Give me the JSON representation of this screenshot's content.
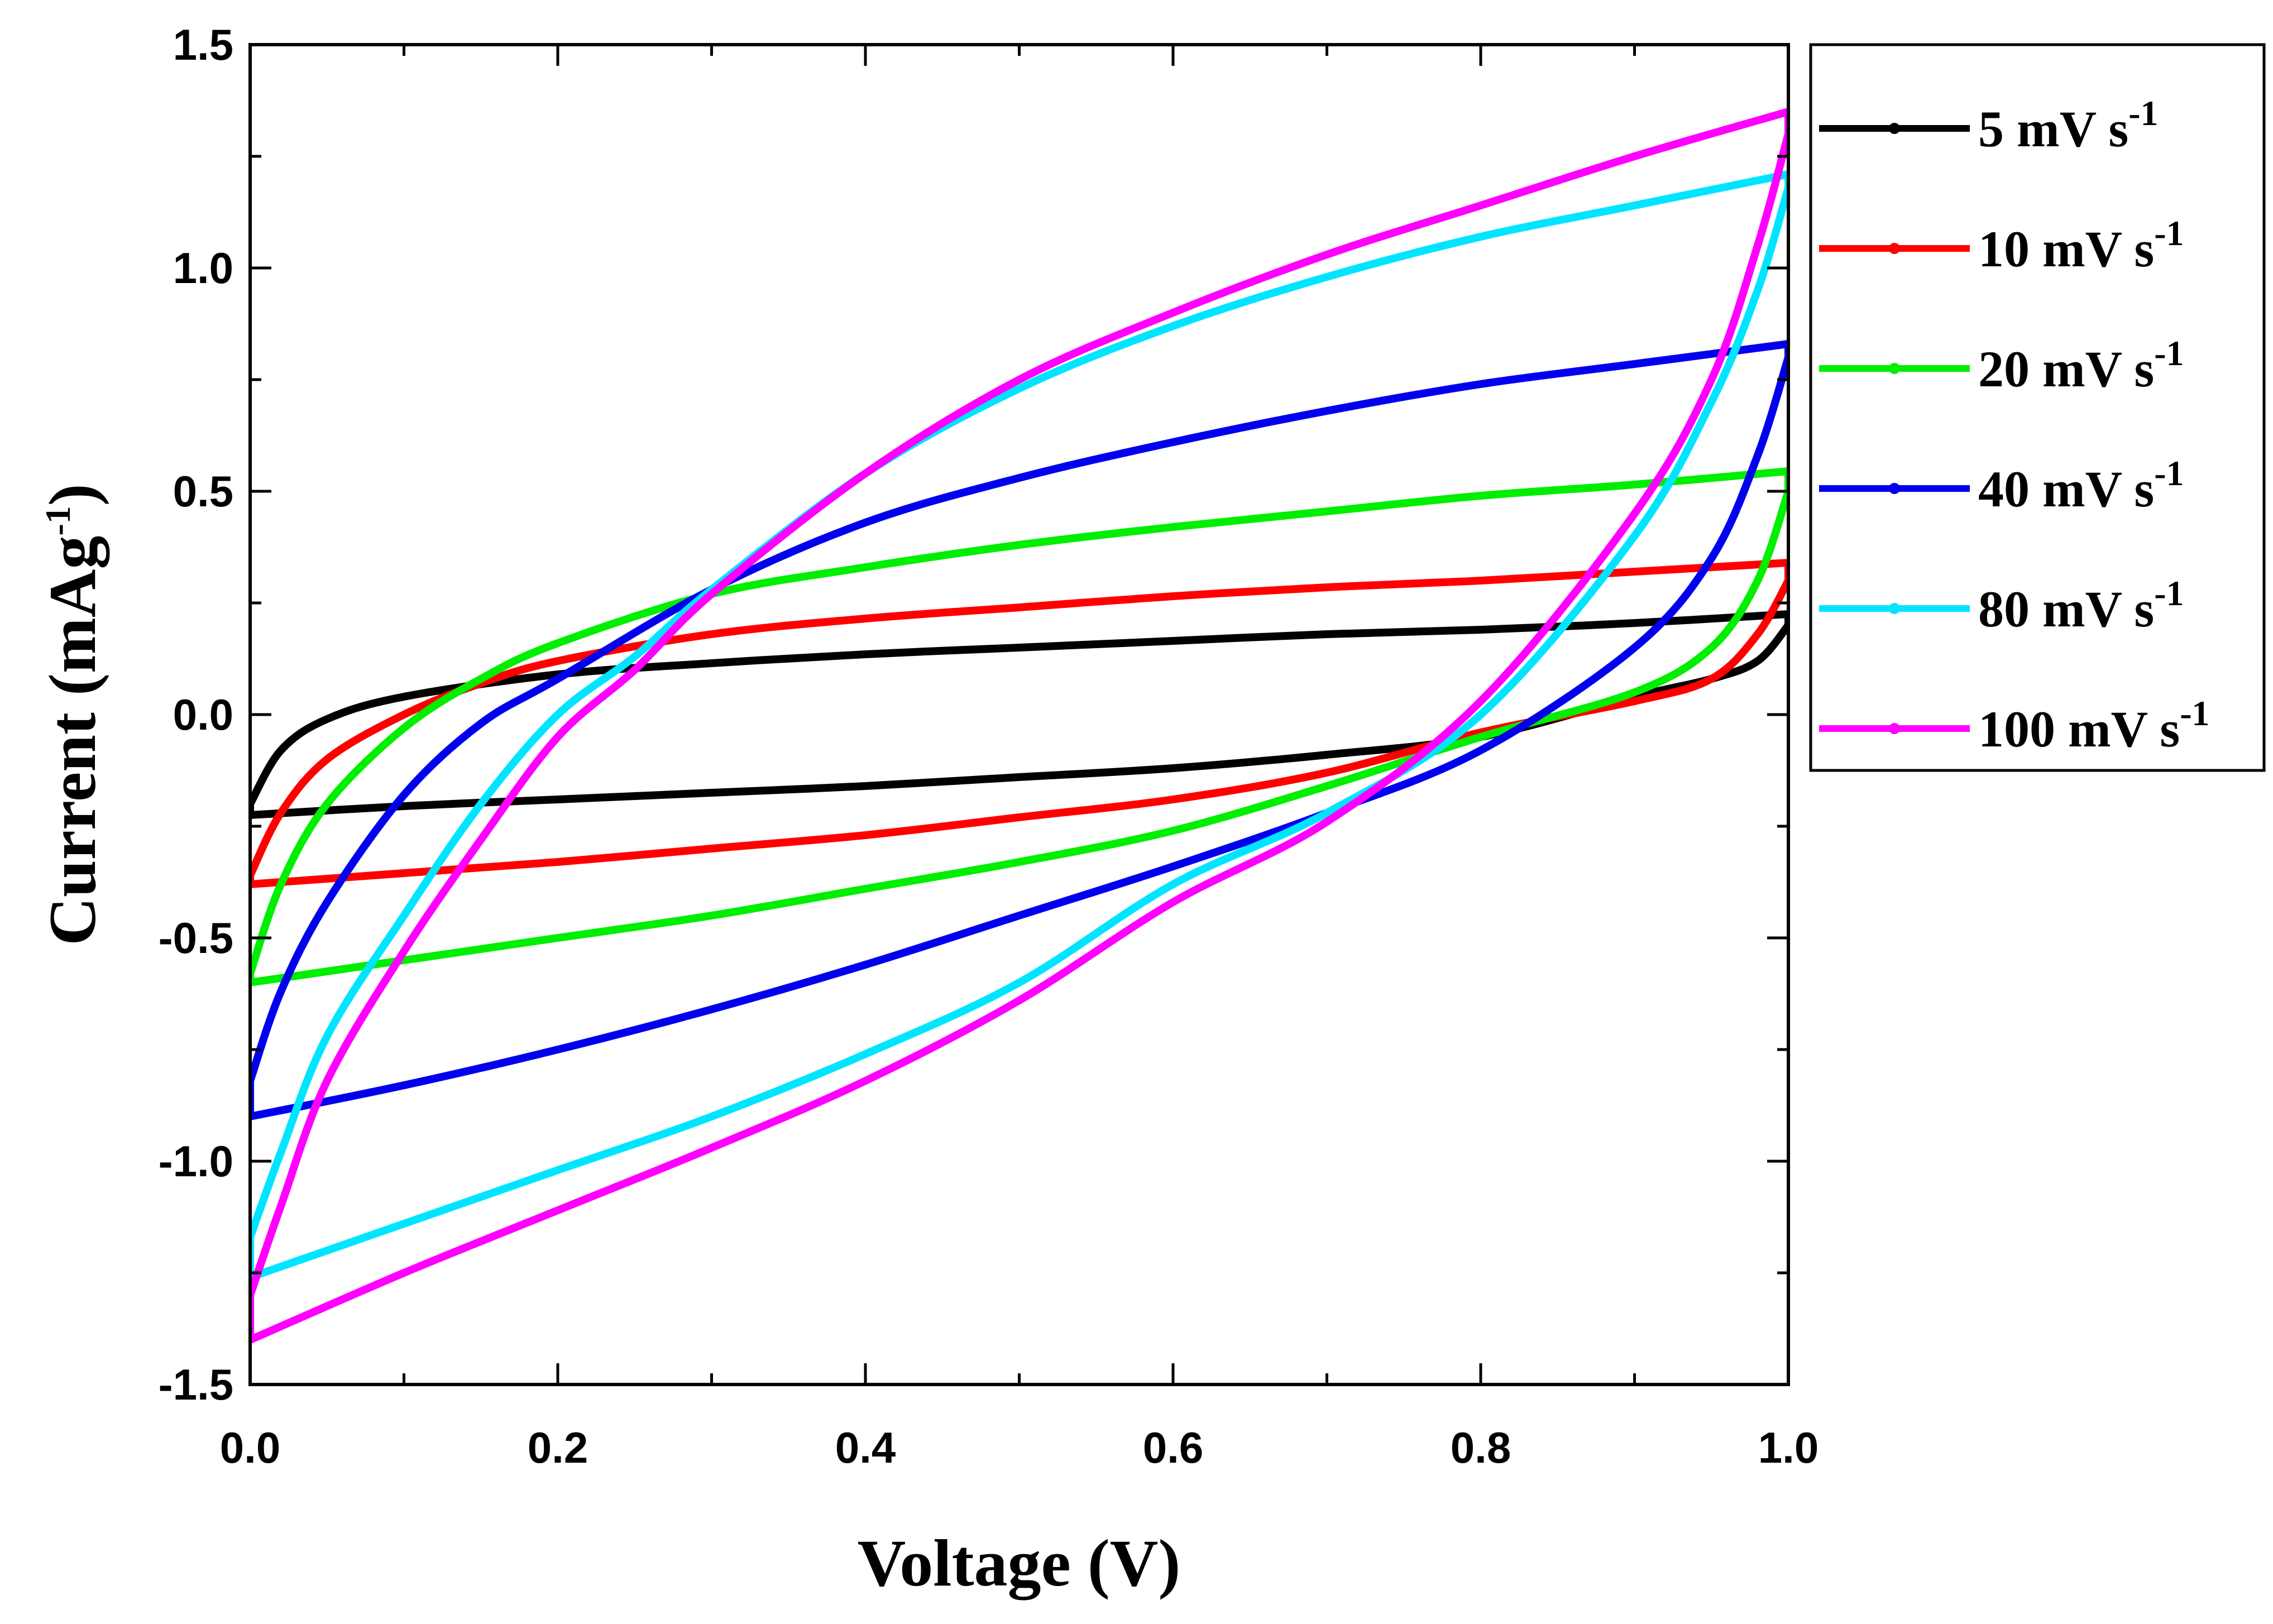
{
  "chart_data": {
    "type": "line",
    "title": "",
    "xlabel": "Voltage (V)",
    "ylabel": {
      "main": "Current (mAg",
      "sup": "-1",
      "close": ")"
    },
    "xlim": [
      0.0,
      1.0
    ],
    "ylim": [
      -1.5,
      1.5
    ],
    "x_ticks": [
      "0.0",
      "0.2",
      "0.4",
      "0.6",
      "0.8",
      "1.0"
    ],
    "y_ticks": [
      "-1.5",
      "-1.0",
      "-0.5",
      "0.0",
      "0.5",
      "1.0",
      "1.5"
    ],
    "grid": false,
    "legend_position": "right",
    "series": [
      {
        "name": "5 mV s-1",
        "label": "5 mV s",
        "sup": "-1",
        "color": "#000000",
        "upper": [
          [
            0.0,
            -0.2
          ],
          [
            0.02,
            -0.08
          ],
          [
            0.05,
            -0.01
          ],
          [
            0.1,
            0.04
          ],
          [
            0.2,
            0.09
          ],
          [
            0.3,
            0.115
          ],
          [
            0.4,
            0.135
          ],
          [
            0.5,
            0.15
          ],
          [
            0.6,
            0.165
          ],
          [
            0.7,
            0.18
          ],
          [
            0.8,
            0.19
          ],
          [
            0.9,
            0.205
          ],
          [
            1.0,
            0.225
          ]
        ],
        "lower": [
          [
            1.0,
            0.2
          ],
          [
            0.98,
            0.12
          ],
          [
            0.95,
            0.08
          ],
          [
            0.9,
            0.04
          ],
          [
            0.8,
            -0.05
          ],
          [
            0.7,
            -0.09
          ],
          [
            0.6,
            -0.12
          ],
          [
            0.5,
            -0.14
          ],
          [
            0.4,
            -0.16
          ],
          [
            0.3,
            -0.175
          ],
          [
            0.2,
            -0.19
          ],
          [
            0.1,
            -0.205
          ],
          [
            0.0,
            -0.225
          ]
        ]
      },
      {
        "name": "10 mV s-1",
        "label": "10 mV s",
        "sup": "-1",
        "color": "#ff0000",
        "upper": [
          [
            0.0,
            -0.36
          ],
          [
            0.02,
            -0.22
          ],
          [
            0.05,
            -0.1
          ],
          [
            0.1,
            0.0
          ],
          [
            0.15,
            0.07
          ],
          [
            0.2,
            0.12
          ],
          [
            0.3,
            0.18
          ],
          [
            0.4,
            0.215
          ],
          [
            0.5,
            0.24
          ],
          [
            0.6,
            0.265
          ],
          [
            0.7,
            0.285
          ],
          [
            0.8,
            0.3
          ],
          [
            0.9,
            0.32
          ],
          [
            1.0,
            0.34
          ]
        ],
        "lower": [
          [
            1.0,
            0.3
          ],
          [
            0.98,
            0.18
          ],
          [
            0.95,
            0.08
          ],
          [
            0.9,
            0.03
          ],
          [
            0.8,
            -0.04
          ],
          [
            0.7,
            -0.13
          ],
          [
            0.6,
            -0.19
          ],
          [
            0.5,
            -0.23
          ],
          [
            0.4,
            -0.27
          ],
          [
            0.3,
            -0.3
          ],
          [
            0.2,
            -0.33
          ],
          [
            0.1,
            -0.355
          ],
          [
            0.0,
            -0.38
          ]
        ]
      },
      {
        "name": "20 mV s-1",
        "label": "20 mV s",
        "sup": "-1",
        "color": "#00ee00",
        "upper": [
          [
            0.0,
            -0.58
          ],
          [
            0.02,
            -0.38
          ],
          [
            0.05,
            -0.2
          ],
          [
            0.1,
            -0.03
          ],
          [
            0.15,
            0.08
          ],
          [
            0.2,
            0.16
          ],
          [
            0.3,
            0.27
          ],
          [
            0.4,
            0.33
          ],
          [
            0.5,
            0.38
          ],
          [
            0.6,
            0.42
          ],
          [
            0.7,
            0.455
          ],
          [
            0.8,
            0.49
          ],
          [
            0.9,
            0.515
          ],
          [
            1.0,
            0.545
          ]
        ],
        "lower": [
          [
            1.0,
            0.5
          ],
          [
            0.98,
            0.3
          ],
          [
            0.95,
            0.15
          ],
          [
            0.9,
            0.05
          ],
          [
            0.8,
            -0.05
          ],
          [
            0.7,
            -0.16
          ],
          [
            0.6,
            -0.26
          ],
          [
            0.5,
            -0.33
          ],
          [
            0.4,
            -0.39
          ],
          [
            0.3,
            -0.45
          ],
          [
            0.2,
            -0.5
          ],
          [
            0.1,
            -0.55
          ],
          [
            0.0,
            -0.6
          ]
        ]
      },
      {
        "name": "40 mV s-1",
        "label": "40 mV s",
        "sup": "-1",
        "color": "#0000ee",
        "upper": [
          [
            0.0,
            -0.82
          ],
          [
            0.02,
            -0.62
          ],
          [
            0.05,
            -0.42
          ],
          [
            0.1,
            -0.18
          ],
          [
            0.15,
            -0.02
          ],
          [
            0.2,
            0.08
          ],
          [
            0.3,
            0.28
          ],
          [
            0.4,
            0.43
          ],
          [
            0.5,
            0.53
          ],
          [
            0.6,
            0.61
          ],
          [
            0.7,
            0.68
          ],
          [
            0.8,
            0.74
          ],
          [
            0.9,
            0.785
          ],
          [
            1.0,
            0.83
          ]
        ],
        "lower": [
          [
            1.0,
            0.8
          ],
          [
            0.98,
            0.58
          ],
          [
            0.95,
            0.35
          ],
          [
            0.9,
            0.15
          ],
          [
            0.8,
            -0.08
          ],
          [
            0.7,
            -0.22
          ],
          [
            0.6,
            -0.34
          ],
          [
            0.5,
            -0.45
          ],
          [
            0.4,
            -0.56
          ],
          [
            0.3,
            -0.66
          ],
          [
            0.2,
            -0.75
          ],
          [
            0.1,
            -0.83
          ],
          [
            0.0,
            -0.9
          ]
        ]
      },
      {
        "name": "80 mV s-1",
        "label": "80 mV s",
        "sup": "-1",
        "color": "#00e5ff",
        "upper": [
          [
            0.0,
            -1.17
          ],
          [
            0.02,
            -0.98
          ],
          [
            0.05,
            -0.72
          ],
          [
            0.1,
            -0.45
          ],
          [
            0.15,
            -0.2
          ],
          [
            0.2,
            0.0
          ],
          [
            0.25,
            0.13
          ],
          [
            0.3,
            0.28
          ],
          [
            0.4,
            0.54
          ],
          [
            0.5,
            0.73
          ],
          [
            0.6,
            0.87
          ],
          [
            0.7,
            0.98
          ],
          [
            0.8,
            1.07
          ],
          [
            0.9,
            1.14
          ],
          [
            1.0,
            1.21
          ]
        ],
        "lower": [
          [
            1.0,
            1.18
          ],
          [
            0.98,
            0.95
          ],
          [
            0.95,
            0.7
          ],
          [
            0.9,
            0.4
          ],
          [
            0.8,
            0.0
          ],
          [
            0.7,
            -0.22
          ],
          [
            0.6,
            -0.38
          ],
          [
            0.5,
            -0.6
          ],
          [
            0.4,
            -0.76
          ],
          [
            0.3,
            -0.9
          ],
          [
            0.2,
            -1.02
          ],
          [
            0.1,
            -1.14
          ],
          [
            0.0,
            -1.26
          ]
        ]
      },
      {
        "name": "100 mV s-1",
        "label": "100 mV s",
        "sup": "-1",
        "color": "#ff00ff",
        "upper": [
          [
            0.0,
            -1.3
          ],
          [
            0.02,
            -1.1
          ],
          [
            0.05,
            -0.82
          ],
          [
            0.1,
            -0.53
          ],
          [
            0.15,
            -0.28
          ],
          [
            0.2,
            -0.05
          ],
          [
            0.25,
            0.1
          ],
          [
            0.3,
            0.27
          ],
          [
            0.4,
            0.54
          ],
          [
            0.5,
            0.75
          ],
          [
            0.6,
            0.9
          ],
          [
            0.7,
            1.03
          ],
          [
            0.8,
            1.14
          ],
          [
            0.9,
            1.25
          ],
          [
            1.0,
            1.35
          ]
        ],
        "lower": [
          [
            1.0,
            1.3
          ],
          [
            0.98,
            1.05
          ],
          [
            0.95,
            0.75
          ],
          [
            0.9,
            0.45
          ],
          [
            0.8,
            0.03
          ],
          [
            0.7,
            -0.24
          ],
          [
            0.6,
            -0.42
          ],
          [
            0.5,
            -0.64
          ],
          [
            0.4,
            -0.82
          ],
          [
            0.3,
            -0.97
          ],
          [
            0.2,
            -1.11
          ],
          [
            0.1,
            -1.25
          ],
          [
            0.0,
            -1.4
          ]
        ]
      }
    ]
  }
}
